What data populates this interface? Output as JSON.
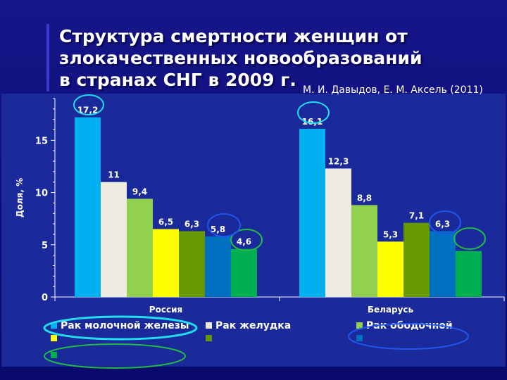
{
  "slide": {
    "title": "Структура смертности женщин от\nзлокачественных новообразований\nв странах СНГ в 2009 г.",
    "author": "М. И. Давыдов, Е. М. Аксель (2011)"
  },
  "colors": {
    "background": "#10107e",
    "plot_background": "#1a2a9a",
    "highlight_ellipse_cyan": "#22ddee",
    "highlight_ellipse_green": "#22bb44",
    "highlight_ellipse_blue": "#2255ee"
  },
  "chart_data": {
    "type": "bar",
    "categories": [
      "Россия",
      "Беларусь"
    ],
    "ylabel": "Доля, %",
    "ylim": [
      0,
      19
    ],
    "yticks": [
      0,
      5,
      10,
      15
    ],
    "grid": false,
    "legend_position": "bottom",
    "series": [
      {
        "name": "Рак молочной железы",
        "color": "#00b0f0",
        "values": [
          17.2,
          16.1
        ],
        "labels": [
          "17,2",
          "16,1"
        ]
      },
      {
        "name": "Рак желудка",
        "color": "#eeece1",
        "values": [
          11,
          12.3
        ],
        "labels": [
          "11",
          "12,3"
        ]
      },
      {
        "name": "Рак ободочной",
        "color": "#92d050",
        "values": [
          9.4,
          8.8
        ],
        "labels": [
          "9,4",
          "8,8"
        ]
      },
      {
        "name": "",
        "color": "#ffff00",
        "values": [
          6.5,
          5.3
        ],
        "labels": [
          "6,5",
          "5,3"
        ]
      },
      {
        "name": "",
        "color": "#669900",
        "values": [
          6.3,
          7.1
        ],
        "labels": [
          "6,3",
          "7,1"
        ]
      },
      {
        "name": "",
        "color": "#0070c0",
        "values": [
          5.8,
          6.3
        ],
        "labels": [
          "5,8",
          "6,3"
        ]
      },
      {
        "name": "",
        "color": "#00b050",
        "values": [
          4.6,
          4.4
        ],
        "labels": [
          "4,6",
          ""
        ]
      }
    ]
  }
}
